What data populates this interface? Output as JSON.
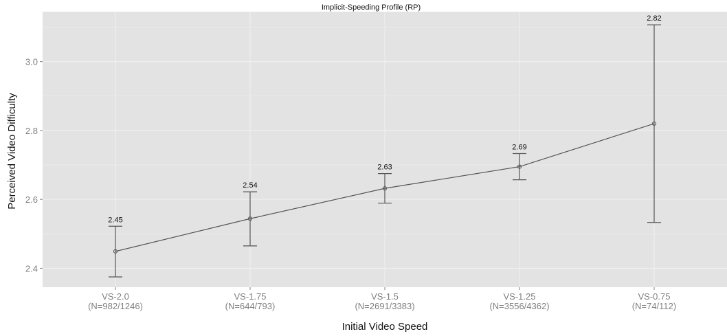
{
  "chart_data": {
    "type": "line",
    "title": "Implicit-Speeding Profile (RP)",
    "xlabel": "Initial Video Speed",
    "ylabel": "Perceived Video Difficulty",
    "categories": [
      "VS-2.0\n(N=982/1246)",
      "VS-1.75\n(N=644/793)",
      "VS-1.5\n(N=2691/3383)",
      "VS-1.25\n(N=3556/4362)",
      "VS-0.75\n(N=74/112)"
    ],
    "series": [
      {
        "values": [
          2.449,
          2.544,
          2.632,
          2.695,
          2.82
        ],
        "error_low": [
          2.375,
          2.465,
          2.589,
          2.657,
          2.533
        ],
        "error_high": [
          2.522,
          2.622,
          2.675,
          2.733,
          3.107
        ],
        "data_labels": [
          "2.45",
          "2.54",
          "2.63",
          "2.69",
          "2.82"
        ]
      }
    ],
    "ylim": [
      2.345,
      3.145
    ],
    "yticks": [
      2.4,
      2.6,
      2.8,
      3.0
    ],
    "ytick_labels": [
      "2.4",
      "2.6",
      "2.8",
      "3.0"
    ],
    "grid": true,
    "legend": "none",
    "colors": {
      "panel": "#e3e3e3",
      "gridline": "#f0f0f0",
      "line": "#555555",
      "tick_text": "#7f7f7f",
      "label_text": "#111111"
    }
  }
}
